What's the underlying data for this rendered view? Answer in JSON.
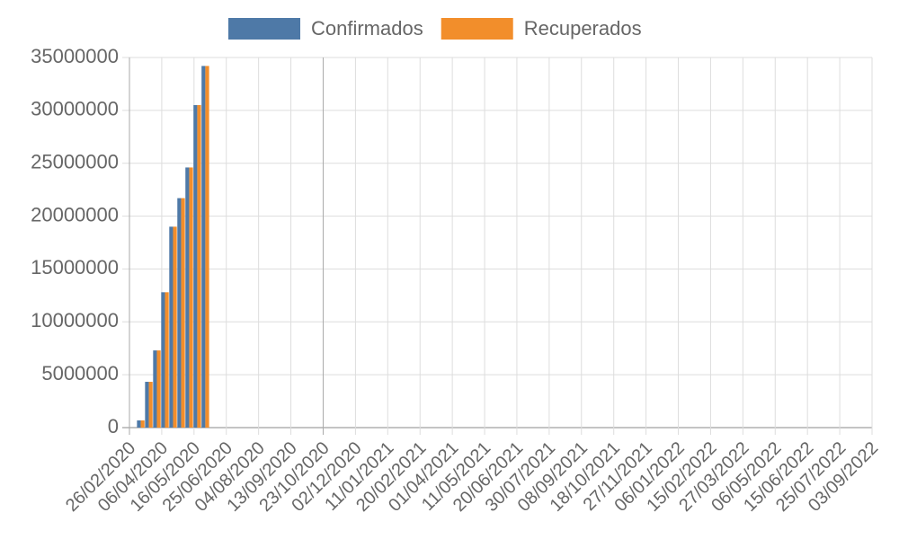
{
  "chart_data": {
    "type": "bar",
    "x": [
      "11/03/2020",
      "21/03/2020",
      "31/03/2020",
      "10/04/2020",
      "20/04/2020",
      "30/04/2020",
      "10/05/2020",
      "20/05/2020",
      "30/05/2020"
    ],
    "series": [
      {
        "name": "Confirmados",
        "color": "#4e79a7",
        "values": [
          680000,
          4330000,
          7300000,
          12800000,
          19000000,
          21700000,
          24600000,
          30500000,
          34200000
        ]
      },
      {
        "name": "Recuperados",
        "color": "#f28e2b",
        "values": [
          680000,
          4330000,
          7300000,
          12800000,
          19000000,
          21700000,
          24600000,
          30500000,
          34200000
        ]
      }
    ],
    "ylim": [
      0,
      35000000
    ],
    "yticks": [
      0,
      5000000,
      10000000,
      15000000,
      20000000,
      25000000,
      30000000,
      35000000
    ],
    "xlim": [
      "26/02/2020",
      "03/09/2022"
    ],
    "xticks": [
      "26/02/2020",
      "06/04/2020",
      "16/05/2020",
      "25/06/2020",
      "04/08/2020",
      "13/09/2020",
      "23/10/2020",
      "02/12/2020",
      "11/01/2021",
      "20/02/2021",
      "01/04/2021",
      "11/05/2021",
      "20/06/2021",
      "30/07/2021",
      "08/09/2021",
      "18/10/2021",
      "27/11/2021",
      "06/01/2022",
      "15/02/2022",
      "27/03/2022",
      "06/05/2022",
      "15/06/2022",
      "25/07/2022",
      "03/09/2022"
    ],
    "grid": true,
    "legend": "top"
  }
}
